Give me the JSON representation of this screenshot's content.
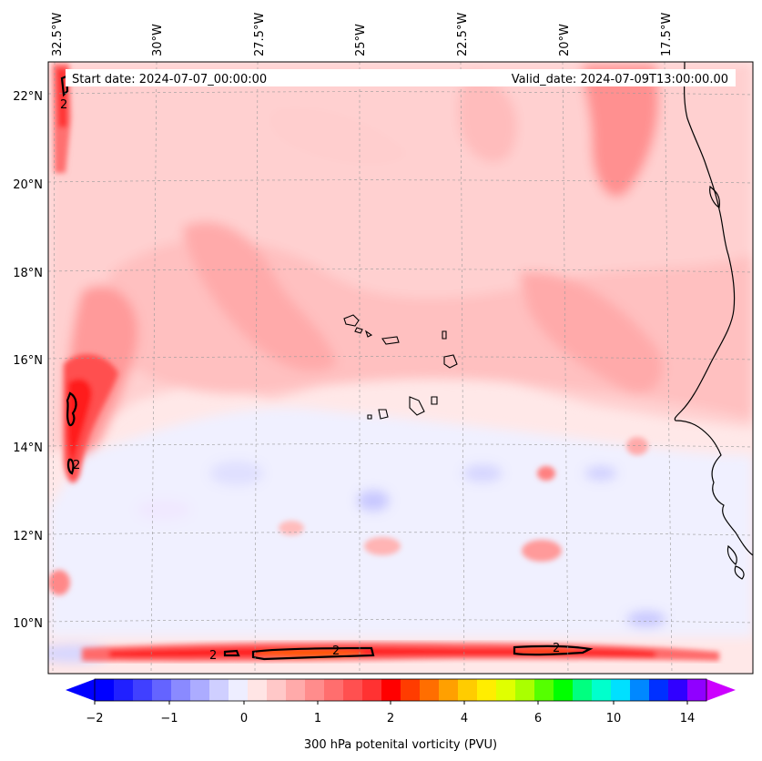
{
  "header": {
    "start_date": "Start date: 2024-07-07_00:00:00",
    "valid_date": "Valid_date: 2024-07-09T13:00:00.00"
  },
  "map": {
    "longitude_labels": [
      "32.5°W",
      "30°W",
      "27.5°W",
      "25°W",
      "22.5°W",
      "20°W",
      "17.5°W"
    ],
    "latitude_labels": [
      "22°N",
      "20°N",
      "18°N",
      "16°N",
      "14°N",
      "12°N",
      "10°N"
    ],
    "contour_label": "2"
  },
  "colorbar": {
    "title": "300 hPa potenital vorticity (PVU)",
    "tick_labels": [
      "−2",
      "−1",
      "0",
      "1",
      "2",
      "4",
      "6",
      "10",
      "14"
    ],
    "colors": [
      "#0000ff",
      "#2020ff",
      "#4040ff",
      "#6464ff",
      "#8a8aff",
      "#acacff",
      "#cfcfff",
      "#eeeeff",
      "#ffe5e5",
      "#ffc8c8",
      "#ffaaaa",
      "#ff8c8c",
      "#ff6e6e",
      "#ff5050",
      "#ff3232",
      "#ff0000",
      "#ff3c00",
      "#ff6e00",
      "#ffa000",
      "#ffcc00",
      "#ffee00",
      "#e0ff00",
      "#aaff00",
      "#55ff00",
      "#00ff00",
      "#00ff80",
      "#00ffcc",
      "#00e0ff",
      "#0088ff",
      "#0030ff",
      "#3000ff",
      "#9000ff"
    ],
    "under_color": "#0000ff",
    "over_color": "#cc00ff"
  }
}
